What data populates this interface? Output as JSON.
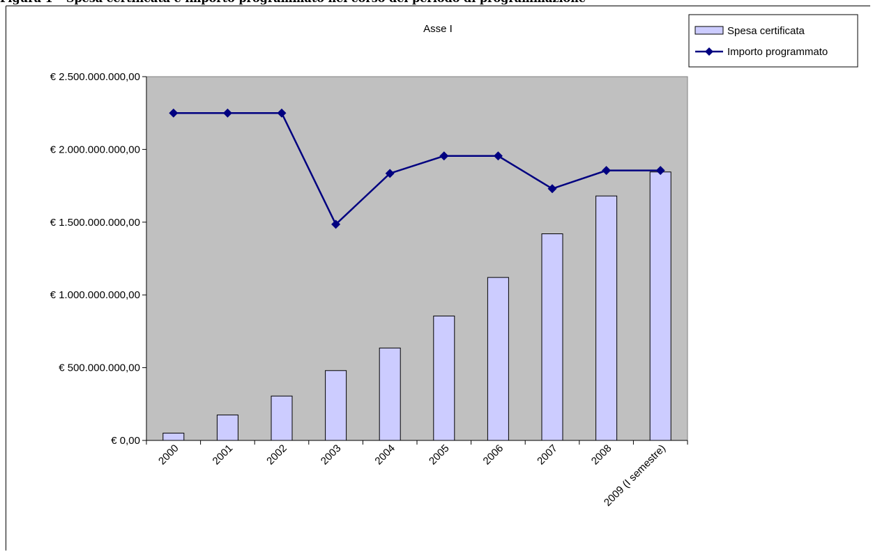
{
  "page_heading": "Figura 1 – Spesa certificata e importo programmato nel corso del periodo di programmazione",
  "chart_data": {
    "type": "bar",
    "title": "Asse I",
    "xlabel": "",
    "ylabel": "",
    "categories": [
      "2000",
      "2001",
      "2002",
      "2003",
      "2004",
      "2005",
      "2006",
      "2007",
      "2008",
      "2009 (I semestre)"
    ],
    "y_tick_labels": [
      "€ 0,00",
      "€ 500.000.000,00",
      "€ 1.000.000.000,00",
      "€ 1.500.000.000,00",
      "€ 2.000.000.000,00",
      "€ 2.500.000.000,00"
    ],
    "y_ticks": [
      0,
      500000000,
      1000000000,
      1500000000,
      2000000000,
      2500000000
    ],
    "ylim": [
      0,
      2500000000
    ],
    "grid": false,
    "legend_position": "top-right",
    "plot_background": "#C0C0C0",
    "series": [
      {
        "name": "Spesa certificata",
        "type": "bar",
        "color": "#CCCCFF",
        "values": [
          50000000,
          175000000,
          305000000,
          480000000,
          635000000,
          855000000,
          1120000000,
          1420000000,
          1680000000,
          1845000000
        ]
      },
      {
        "name": "Importo programmato",
        "type": "line",
        "marker": "diamond",
        "color": "#000080",
        "values": [
          2250000000,
          2250000000,
          2250000000,
          1485000000,
          1835000000,
          1955000000,
          1955000000,
          1730000000,
          1855000000,
          1855000000
        ]
      }
    ]
  }
}
